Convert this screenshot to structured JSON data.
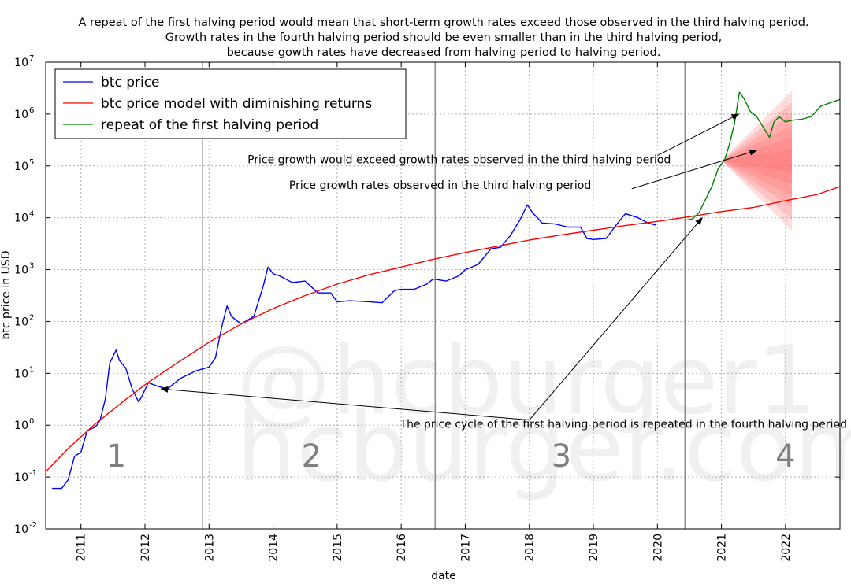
{
  "chart_data": {
    "type": "line",
    "title_lines": [
      "A repeat of the first halving period would mean that short-term growth rates exceed those observed in the third halving period.",
      "Growth rates in the fourth halving period should be even smaller than in the third halving period,",
      "because gowth rates have decreased from halving period to halving period."
    ],
    "xlabel": "date",
    "ylabel": "btc price in USD",
    "xlim": [
      2010.45,
      2022.85
    ],
    "ylog_range": [
      -2,
      7
    ],
    "x_ticks": [
      "2011",
      "2012",
      "2013",
      "2014",
      "2015",
      "2016",
      "2017",
      "2018",
      "2019",
      "2020",
      "2021",
      "2022"
    ],
    "y_ticks": [
      {
        "base": "10",
        "exp": "-2",
        "value": -2
      },
      {
        "base": "10",
        "exp": "-1",
        "value": -1
      },
      {
        "base": "10",
        "exp": "0",
        "value": 0
      },
      {
        "base": "10",
        "exp": "1",
        "value": 1
      },
      {
        "base": "10",
        "exp": "2",
        "value": 2
      },
      {
        "base": "10",
        "exp": "3",
        "value": 3
      },
      {
        "base": "10",
        "exp": "4",
        "value": 4
      },
      {
        "base": "10",
        "exp": "5",
        "value": 5
      },
      {
        "base": "10",
        "exp": "6",
        "value": 6
      },
      {
        "base": "10",
        "exp": "7",
        "value": 7
      }
    ],
    "grid": true,
    "halving_dates": [
      2012.9,
      2016.53,
      2020.43
    ],
    "period_labels": [
      {
        "text": "1",
        "x": 2011.55
      },
      {
        "text": "2",
        "x": 2014.6
      },
      {
        "text": "3",
        "x": 2018.5
      },
      {
        "text": "4",
        "x": 2022.0
      }
    ],
    "legend": [
      {
        "label": "btc price",
        "color": "#0000ff"
      },
      {
        "label": "btc price model with diminishing returns",
        "color": "#ff0000"
      },
      {
        "label": "repeat of the first halving period",
        "color": "#008000"
      }
    ],
    "series": [
      {
        "name": "btc price",
        "color": "#0000ff",
        "log10_values": [
          [
            2010.55,
            -1.22
          ],
          [
            2010.7,
            -1.22
          ],
          [
            2010.8,
            -1.05
          ],
          [
            2010.9,
            -0.6
          ],
          [
            2011.0,
            -0.52
          ],
          [
            2011.1,
            -0.1
          ],
          [
            2011.2,
            -0.05
          ],
          [
            2011.25,
            0.0
          ],
          [
            2011.3,
            0.1
          ],
          [
            2011.38,
            0.5
          ],
          [
            2011.45,
            1.2
          ],
          [
            2011.55,
            1.45
          ],
          [
            2011.6,
            1.25
          ],
          [
            2011.7,
            1.1
          ],
          [
            2011.8,
            0.7
          ],
          [
            2011.9,
            0.45
          ],
          [
            2011.95,
            0.55
          ],
          [
            2012.05,
            0.82
          ],
          [
            2012.2,
            0.75
          ],
          [
            2012.35,
            0.7
          ],
          [
            2012.55,
            0.9
          ],
          [
            2012.8,
            1.05
          ],
          [
            2013.0,
            1.12
          ],
          [
            2013.1,
            1.3
          ],
          [
            2013.2,
            1.9
          ],
          [
            2013.28,
            2.3
          ],
          [
            2013.35,
            2.1
          ],
          [
            2013.5,
            1.95
          ],
          [
            2013.7,
            2.1
          ],
          [
            2013.85,
            2.7
          ],
          [
            2013.92,
            3.05
          ],
          [
            2014.0,
            2.92
          ],
          [
            2014.1,
            2.88
          ],
          [
            2014.3,
            2.75
          ],
          [
            2014.5,
            2.78
          ],
          [
            2014.7,
            2.55
          ],
          [
            2014.9,
            2.55
          ],
          [
            2015.0,
            2.38
          ],
          [
            2015.2,
            2.4
          ],
          [
            2015.5,
            2.38
          ],
          [
            2015.7,
            2.36
          ],
          [
            2015.9,
            2.6
          ],
          [
            2016.0,
            2.62
          ],
          [
            2016.2,
            2.62
          ],
          [
            2016.4,
            2.72
          ],
          [
            2016.5,
            2.82
          ],
          [
            2016.7,
            2.78
          ],
          [
            2016.9,
            2.88
          ],
          [
            2017.0,
            3.0
          ],
          [
            2017.2,
            3.1
          ],
          [
            2017.4,
            3.4
          ],
          [
            2017.55,
            3.43
          ],
          [
            2017.7,
            3.65
          ],
          [
            2017.85,
            3.95
          ],
          [
            2017.97,
            4.25
          ],
          [
            2018.05,
            4.1
          ],
          [
            2018.2,
            3.9
          ],
          [
            2018.4,
            3.88
          ],
          [
            2018.6,
            3.82
          ],
          [
            2018.8,
            3.82
          ],
          [
            2018.9,
            3.6
          ],
          [
            2019.0,
            3.58
          ],
          [
            2019.2,
            3.6
          ],
          [
            2019.35,
            3.85
          ],
          [
            2019.5,
            4.08
          ],
          [
            2019.7,
            4.0
          ],
          [
            2019.85,
            3.9
          ],
          [
            2019.97,
            3.86
          ]
        ]
      },
      {
        "name": "btc price model with diminishing returns",
        "color": "#ff0000",
        "log10_values": [
          [
            2010.45,
            -0.9
          ],
          [
            2010.8,
            -0.45
          ],
          [
            2011.2,
            0.0
          ],
          [
            2011.6,
            0.4
          ],
          [
            2012.0,
            0.78
          ],
          [
            2012.5,
            1.2
          ],
          [
            2013.0,
            1.6
          ],
          [
            2013.5,
            1.95
          ],
          [
            2014.0,
            2.25
          ],
          [
            2014.5,
            2.5
          ],
          [
            2015.0,
            2.72
          ],
          [
            2015.5,
            2.9
          ],
          [
            2016.0,
            3.05
          ],
          [
            2016.5,
            3.2
          ],
          [
            2017.0,
            3.33
          ],
          [
            2017.5,
            3.45
          ],
          [
            2018.0,
            3.57
          ],
          [
            2018.5,
            3.67
          ],
          [
            2019.0,
            3.76
          ],
          [
            2019.5,
            3.85
          ],
          [
            2020.0,
            3.93
          ],
          [
            2020.5,
            4.02
          ],
          [
            2021.0,
            4.12
          ],
          [
            2021.5,
            4.2
          ],
          [
            2022.0,
            4.33
          ],
          [
            2022.5,
            4.45
          ],
          [
            2022.85,
            4.6
          ]
        ]
      },
      {
        "name": "repeat of the first halving period",
        "color": "#008000",
        "log10_values": [
          [
            2020.43,
            3.95
          ],
          [
            2020.55,
            3.98
          ],
          [
            2020.65,
            4.1
          ],
          [
            2020.75,
            4.35
          ],
          [
            2020.85,
            4.6
          ],
          [
            2020.95,
            4.95
          ],
          [
            2021.05,
            5.12
          ],
          [
            2021.12,
            5.4
          ],
          [
            2021.2,
            5.8
          ],
          [
            2021.28,
            6.42
          ],
          [
            2021.35,
            6.3
          ],
          [
            2021.45,
            6.05
          ],
          [
            2021.55,
            5.95
          ],
          [
            2021.65,
            5.75
          ],
          [
            2021.75,
            5.55
          ],
          [
            2021.82,
            5.85
          ],
          [
            2021.9,
            5.95
          ],
          [
            2022.0,
            5.85
          ],
          [
            2022.1,
            5.88
          ],
          [
            2022.25,
            5.9
          ],
          [
            2022.4,
            5.95
          ],
          [
            2022.55,
            6.15
          ],
          [
            2022.7,
            6.22
          ],
          [
            2022.85,
            6.28
          ]
        ]
      }
    ],
    "projection_band": {
      "color": "#ff6666",
      "x_start": 2021.0,
      "x_end": 2022.1,
      "center_log10": 5.1,
      "spread_end_log10": 1.35
    },
    "annotations": [
      {
        "text": "Price growth would exceed growth rates observed in the third halving period",
        "text_at": [
          2013.6,
          5.05
        ],
        "line_from": [
          2020.0,
          5.2
        ],
        "arrow_to": [
          2021.27,
          6.0
        ]
      },
      {
        "text": "Price growth rates observed in the third halving period",
        "text_at": [
          2014.25,
          4.56
        ],
        "line_from": [
          2019.6,
          4.56
        ],
        "arrow_to": [
          2021.55,
          5.3
        ]
      },
      {
        "text": "The price cycle of the first halving period is repeated in the fourth halving period",
        "text_at": [
          2015.98,
          -0.05
        ],
        "line_from": [
          2018.0,
          0.1
        ],
        "arrow_to": [
          2012.25,
          0.7
        ],
        "second_arrow_to": [
          2020.7,
          4.0
        ]
      }
    ],
    "watermark_lines": [
      "@hcburger1",
      "hcburger.com"
    ]
  }
}
